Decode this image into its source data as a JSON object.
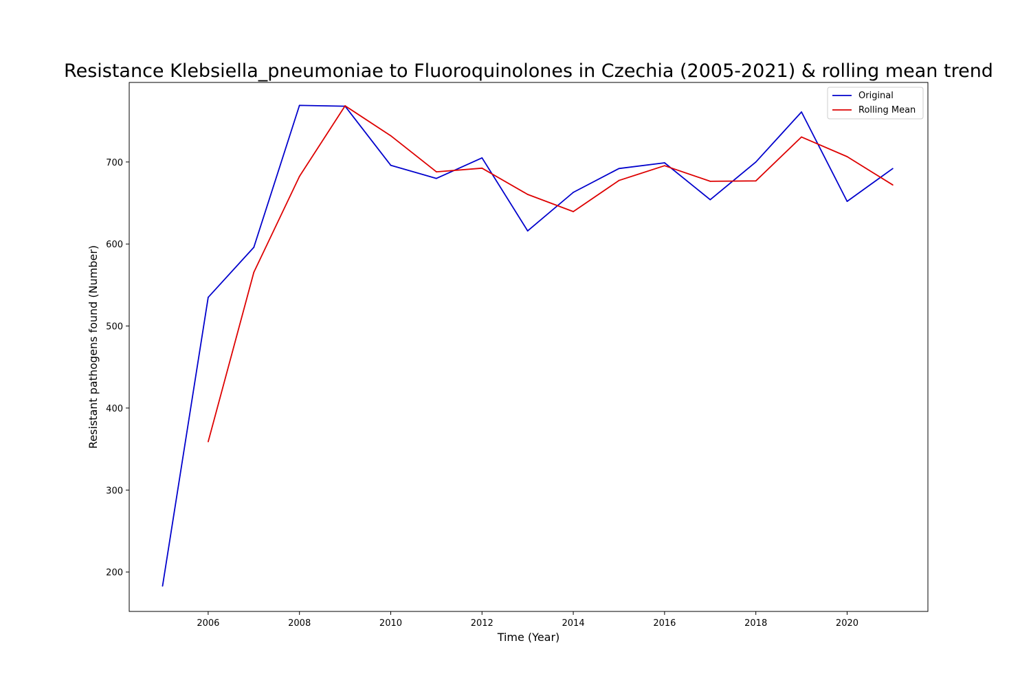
{
  "chart_data": {
    "type": "line",
    "title": "Resistance Klebsiella_pneumoniae to Fluoroquinolones in Czechia (2005-2021) & rolling mean trend",
    "xlabel": "Time (Year)",
    "ylabel": "Resistant pathogens found (Number)",
    "xlim": [
      2004.27,
      2021.77
    ],
    "ylim": [
      152,
      797
    ],
    "xticks": [
      2006,
      2008,
      2010,
      2012,
      2014,
      2016,
      2018,
      2020
    ],
    "yticks": [
      200,
      300,
      400,
      500,
      600,
      700
    ],
    "grid": false,
    "legend_position": "top-right",
    "series": [
      {
        "name": "Original",
        "color": "#0000cc",
        "x": [
          2005,
          2006,
          2007,
          2008,
          2009,
          2010,
          2011,
          2012,
          2013,
          2014,
          2015,
          2016,
          2017,
          2018,
          2019,
          2020,
          2021
        ],
        "values": [
          183,
          535,
          596,
          769,
          768,
          696,
          680,
          705,
          616,
          663,
          692,
          699,
          654,
          700,
          761,
          652,
          692
        ]
      },
      {
        "name": "Rolling Mean",
        "color": "#dd0000",
        "x": [
          2006,
          2007,
          2008,
          2009,
          2010,
          2011,
          2012,
          2013,
          2014,
          2015,
          2016,
          2017,
          2018,
          2019,
          2020,
          2021
        ],
        "values": [
          359,
          565.5,
          682.5,
          768.5,
          732,
          688,
          692.5,
          660.5,
          639.5,
          677.5,
          695.5,
          676.5,
          677,
          730.5,
          706.5,
          672
        ]
      }
    ]
  }
}
